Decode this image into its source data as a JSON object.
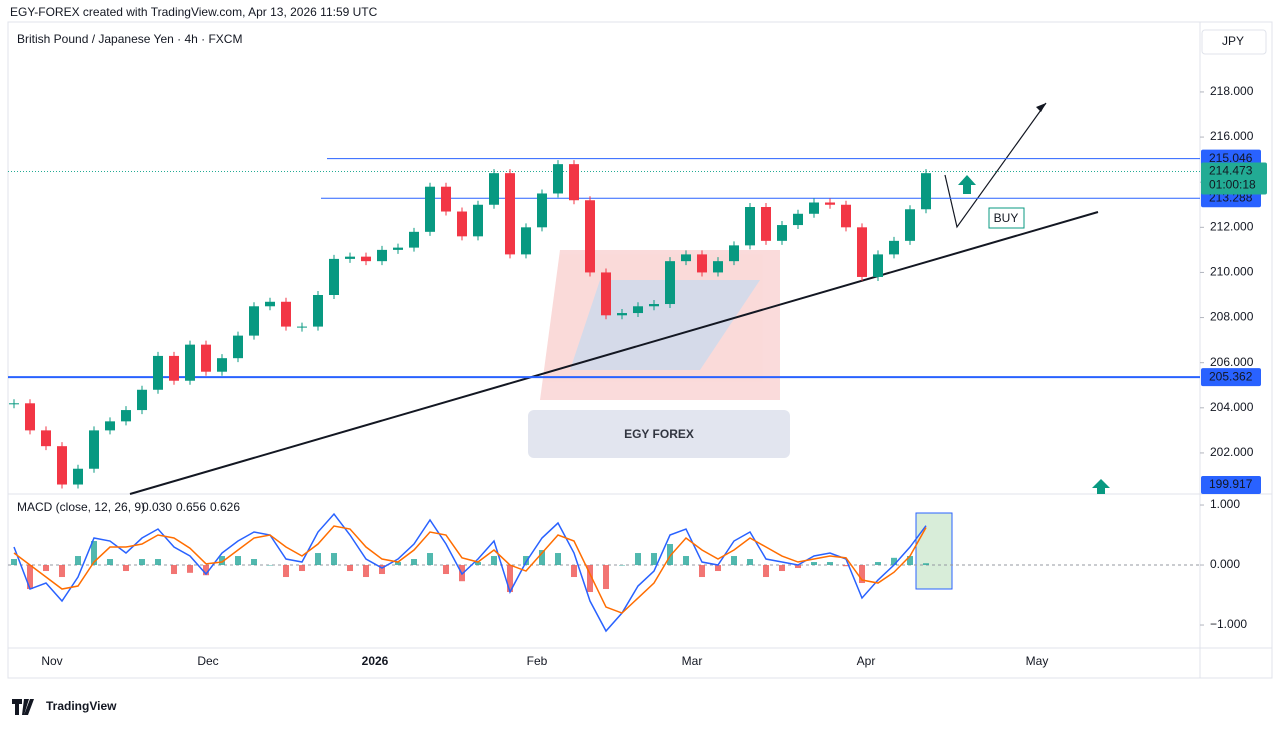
{
  "header": {
    "credit": "EGY-FOREX created with TradingView.com, Apr 13, 2026 11:59 UTC",
    "symbol": "British Pound / Japanese Yen · 4h · FXCM",
    "currency": "JPY"
  },
  "chart_data": {
    "type": "candlestick",
    "closes": [
      204.2,
      203.0,
      202.3,
      200.6,
      201.3,
      203.0,
      203.4,
      203.9,
      204.8,
      206.3,
      205.2,
      206.8,
      205.6,
      206.2,
      207.2,
      208.5,
      208.7,
      207.6,
      207.6,
      209.0,
      210.6,
      210.7,
      210.5,
      211.0,
      211.1,
      211.8,
      213.8,
      212.7,
      211.6,
      213.0,
      214.4,
      210.8,
      212.0,
      213.5,
      214.8,
      213.2,
      210.0,
      208.1,
      208.2,
      208.5,
      208.6,
      210.5,
      210.8,
      210.0,
      210.5,
      211.2,
      212.9,
      211.4,
      212.1,
      212.6,
      213.1,
      213.0,
      212.0,
      209.8,
      210.8,
      211.4,
      212.8,
      214.4
    ],
    "up_color": "#089981",
    "down_color": "#f23645",
    "ylim": [
      200.18,
      221.1
    ],
    "yticks": [
      {
        "value": 202,
        "label": "202.000"
      },
      {
        "value": 204,
        "label": "204.000"
      },
      {
        "value": 206,
        "label": "206.000"
      },
      {
        "value": 208,
        "label": "208.000"
      },
      {
        "value": 210,
        "label": "210.000"
      },
      {
        "value": 212,
        "label": "212.000"
      },
      {
        "value": 214,
        "label": "214.000"
      },
      {
        "value": 216,
        "label": "216.000"
      },
      {
        "value": 218,
        "label": "218.000"
      }
    ],
    "levels": [
      {
        "value": 215.046,
        "label": "215.046"
      },
      {
        "value": 213.288,
        "label": "213.288"
      },
      {
        "value": 205.362,
        "label": "205.362"
      },
      {
        "value": 199.917,
        "label": "199.917"
      }
    ],
    "last_price": {
      "value": 214.473,
      "label": "214.473",
      "countdown": "01:00:18"
    },
    "annotation": "BUY",
    "xlabels": [
      "Nov",
      "Dec",
      "2026",
      "Feb",
      "Mar",
      "Apr",
      "May"
    ]
  },
  "macd": {
    "type": "macd",
    "title": "MACD (close, 12, 26, 9)",
    "legend_values": [
      {
        "value": 0.03,
        "label": "0.030",
        "color": "#a5d6d0"
      },
      {
        "value": 0.656,
        "label": "0.656",
        "color": "#2962ff"
      },
      {
        "value": 0.626,
        "label": "0.626",
        "color": "#ff6d00"
      }
    ],
    "macd": [
      0.3,
      -0.4,
      -0.3,
      -0.6,
      -0.2,
      0.45,
      0.4,
      0.2,
      0.45,
      0.6,
      0.3,
      0.15,
      -0.15,
      0.2,
      0.4,
      0.55,
      0.5,
      0.1,
      0.05,
      0.55,
      0.85,
      0.5,
      0.1,
      -0.05,
      0.1,
      0.35,
      0.75,
      0.35,
      -0.15,
      0.1,
      0.4,
      -0.45,
      0.05,
      0.45,
      0.7,
      0.2,
      -0.6,
      -1.1,
      -0.8,
      -0.35,
      -0.1,
      0.5,
      0.6,
      0.05,
      0.0,
      0.4,
      0.55,
      0.1,
      0.05,
      0.0,
      0.15,
      0.2,
      0.1,
      -0.55,
      -0.25,
      0.0,
      0.3,
      0.656
    ],
    "signal": [
      0.2,
      0.0,
      -0.2,
      -0.4,
      -0.35,
      0.05,
      0.3,
      0.3,
      0.35,
      0.5,
      0.45,
      0.28,
      0.02,
      0.05,
      0.25,
      0.45,
      0.5,
      0.3,
      0.15,
      0.35,
      0.65,
      0.6,
      0.3,
      0.1,
      0.05,
      0.25,
      0.55,
      0.5,
      0.12,
      0.05,
      0.25,
      0.0,
      -0.1,
      0.2,
      0.5,
      0.4,
      -0.15,
      -0.7,
      -0.8,
      -0.55,
      -0.3,
      0.15,
      0.45,
      0.25,
      0.1,
      0.25,
      0.45,
      0.3,
      0.15,
      0.05,
      0.1,
      0.15,
      0.12,
      -0.25,
      -0.3,
      -0.12,
      0.15,
      0.626
    ],
    "histogram": [
      0.1,
      -0.4,
      -0.1,
      -0.2,
      0.15,
      0.4,
      0.1,
      -0.1,
      0.1,
      0.1,
      -0.15,
      -0.13,
      -0.17,
      0.15,
      0.15,
      0.1,
      0.0,
      -0.2,
      -0.1,
      0.2,
      0.2,
      -0.1,
      -0.2,
      -0.15,
      0.05,
      0.1,
      0.2,
      -0.15,
      -0.27,
      0.05,
      0.15,
      -0.45,
      0.15,
      0.25,
      0.2,
      -0.2,
      -0.45,
      -0.4,
      0.0,
      0.2,
      0.2,
      0.35,
      0.15,
      -0.2,
      -0.1,
      0.15,
      0.1,
      -0.2,
      -0.1,
      -0.05,
      0.05,
      0.05,
      -0.02,
      -0.3,
      0.05,
      0.12,
      0.15,
      0.03
    ],
    "macd_color": "#2962ff",
    "signal_color": "#ff6d00",
    "ylim": [
      -1.383,
      1.167
    ],
    "yticks": [
      {
        "value": 1,
        "label": "1.000"
      },
      {
        "value": 0,
        "label": "0.000"
      },
      {
        "value": -1,
        "label": "−1.000"
      }
    ]
  },
  "watermark": "EGY FOREX",
  "footer": "TradingView"
}
